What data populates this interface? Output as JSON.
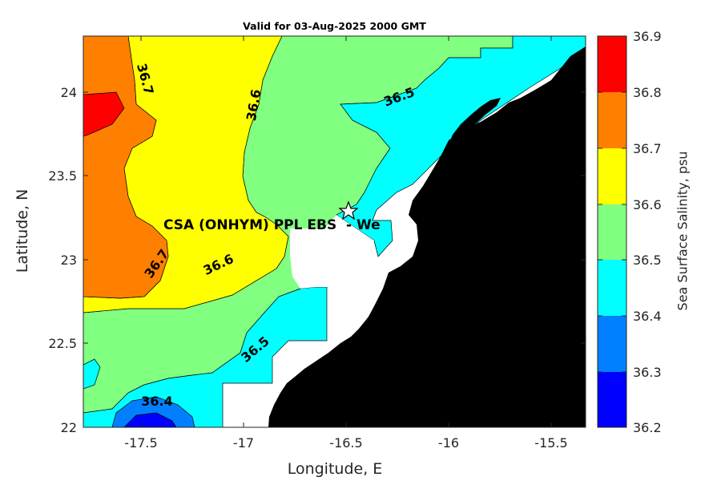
{
  "title": "Valid for 03-Aug-2025 2000 GMT",
  "axes": {
    "xlabel": "Longitude, E",
    "ylabel": "Latitude, N",
    "x_ticks": [
      "-17.5",
      "-17",
      "-16.5",
      "-16",
      "-15.5"
    ],
    "y_ticks": [
      "24",
      "23.5",
      "23",
      "22.5",
      "22"
    ],
    "xlim": [
      -17.8,
      -15.35
    ],
    "ylim": [
      22.0,
      24.35
    ]
  },
  "colorbar": {
    "label": "Sea Surface Salinity, psu",
    "ticks": [
      "36.9",
      "36.8",
      "36.7",
      "36.6",
      "36.5",
      "36.4",
      "36.3",
      "36.2"
    ],
    "levels": [
      {
        "from": 36.8,
        "to": 36.9,
        "color": "#ff0000"
      },
      {
        "from": 36.7,
        "to": 36.8,
        "color": "#ff8000"
      },
      {
        "from": 36.6,
        "to": 36.7,
        "color": "#ffff00"
      },
      {
        "from": 36.5,
        "to": 36.6,
        "color": "#80ff80"
      },
      {
        "from": 36.4,
        "to": 36.5,
        "color": "#00ffff"
      },
      {
        "from": 36.3,
        "to": 36.4,
        "color": "#0080ff"
      },
      {
        "from": 36.2,
        "to": 36.3,
        "color": "#0000ff"
      }
    ]
  },
  "contour_labels": [
    "36.7",
    "36.6",
    "36.5",
    "36.7",
    "36.6",
    "36.5",
    "36.4"
  ],
  "site": {
    "label": "CSA (ONHYM) PPL EBS  - We",
    "lon": -16.5,
    "lat": 23.29,
    "marker": "star-icon"
  },
  "land_color": "#000000",
  "nodata_color": "#ffffff"
}
